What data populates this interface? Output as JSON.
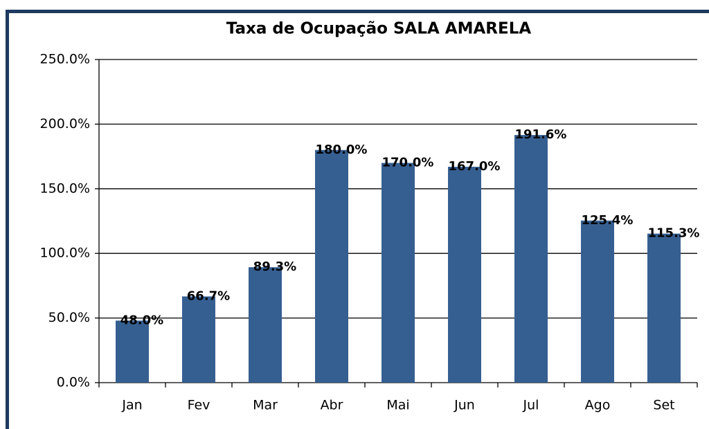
{
  "chart_data": {
    "type": "bar",
    "title": "Taxa de Ocupação SALA AMARELA",
    "categories": [
      "Jan",
      "Fev",
      "Mar",
      "Abr",
      "Mai",
      "Jun",
      "Jul",
      "Ago",
      "Set"
    ],
    "values": [
      48.0,
      66.7,
      89.3,
      180.0,
      170.0,
      167.0,
      191.6,
      125.4,
      115.3
    ],
    "value_labels": [
      "48.0%",
      "66.7%",
      "89.3%",
      "180.0%",
      "170.0%",
      "167.0%",
      "191.6%",
      "125.4%",
      "115.3%"
    ],
    "color": "#365f91",
    "ylim": [
      0,
      250
    ],
    "yticks": [
      {
        "value": 0,
        "label": "0.0%"
      },
      {
        "value": 50,
        "label": "50.0%"
      },
      {
        "value": 100,
        "label": "100.0%"
      },
      {
        "value": 150,
        "label": "150.0%"
      },
      {
        "value": 200,
        "label": "200.0%"
      },
      {
        "value": 250,
        "label": "250.0%"
      }
    ],
    "grid": true
  }
}
